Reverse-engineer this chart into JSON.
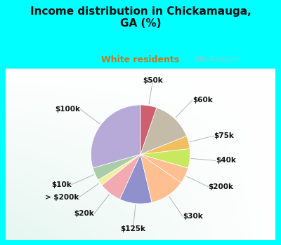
{
  "title": "Income distribution in Chickamauga,\nGA (%)",
  "subtitle": "White residents",
  "bg_cyan": "#00FFFF",
  "labels": [
    "$100k",
    "$10k",
    "> $200k",
    "$20k",
    "$125k",
    "$30k",
    "$200k",
    "$40k",
    "$75k",
    "$60k",
    "$50k"
  ],
  "values": [
    28,
    4,
    2,
    7,
    10,
    11,
    5,
    6,
    4,
    13,
    5
  ],
  "colors": [
    "#b8aad8",
    "#aacca8",
    "#f0f0a0",
    "#f0aab0",
    "#9090cc",
    "#ffbf90",
    "#ffbf90",
    "#c8e860",
    "#f0c060",
    "#c4bca8",
    "#cc6070"
  ],
  "startangle": 90,
  "title_fontsize": 11,
  "subtitle_fontsize": 9,
  "label_fontsize": 7.5,
  "watermark": " City-Data.com"
}
